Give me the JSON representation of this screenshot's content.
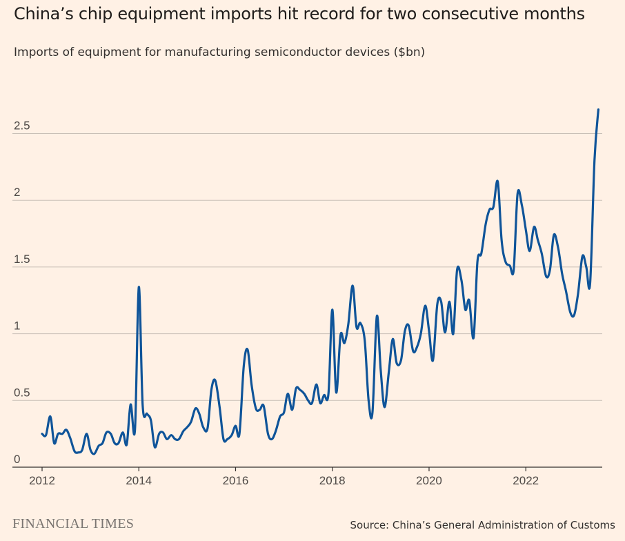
{
  "title": "China’s chip equipment imports hit record for two consecutive months",
  "subtitle": "Imports of equipment for manufacturing semiconductor devices ($bn)",
  "brand": "FINANCIAL TIMES",
  "source": "Source: China’s General Administration of Customs",
  "colors": {
    "background": "#fff1e5",
    "line": "#0f5499",
    "grid": "#c9c0b7",
    "axis": "#33302e"
  },
  "chart_data": {
    "type": "line",
    "title": "China’s chip equipment imports hit record for two consecutive months",
    "ylabel": "Imports of equipment for manufacturing semiconductor devices ($bn)",
    "xlabel": "",
    "xlim": [
      2012,
      2023.58
    ],
    "ylim": [
      0,
      2.5
    ],
    "xticks": [
      2012,
      2014,
      2016,
      2018,
      2020,
      2022
    ],
    "xtick_labels": [
      "2012",
      "2014",
      "2016",
      "2018",
      "2020",
      "2022"
    ],
    "yticks": [
      0,
      0.5,
      1,
      1.5,
      2,
      2.5
    ],
    "ytick_labels": [
      "0",
      "0.5",
      "1",
      "1.5",
      "2",
      "2.5"
    ],
    "grid": true,
    "legend": "none",
    "series": [
      {
        "name": "Imports ($bn)",
        "x": [
          2012.0,
          2012.08,
          2012.17,
          2012.25,
          2012.33,
          2012.42,
          2012.5,
          2012.58,
          2012.67,
          2012.75,
          2012.83,
          2012.92,
          2013.0,
          2013.08,
          2013.17,
          2013.25,
          2013.33,
          2013.42,
          2013.5,
          2013.58,
          2013.67,
          2013.75,
          2013.83,
          2013.92,
          2014.0,
          2014.08,
          2014.17,
          2014.25,
          2014.33,
          2014.42,
          2014.5,
          2014.58,
          2014.67,
          2014.75,
          2014.83,
          2014.92,
          2015.0,
          2015.08,
          2015.17,
          2015.25,
          2015.33,
          2015.42,
          2015.5,
          2015.58,
          2015.67,
          2015.75,
          2015.83,
          2015.92,
          2016.0,
          2016.08,
          2016.17,
          2016.25,
          2016.33,
          2016.42,
          2016.5,
          2016.58,
          2016.67,
          2016.75,
          2016.83,
          2016.92,
          2017.0,
          2017.08,
          2017.17,
          2017.25,
          2017.33,
          2017.42,
          2017.5,
          2017.58,
          2017.67,
          2017.75,
          2017.83,
          2017.92,
          2018.0,
          2018.08,
          2018.17,
          2018.25,
          2018.33,
          2018.42,
          2018.5,
          2018.58,
          2018.67,
          2018.75,
          2018.83,
          2018.92,
          2019.0,
          2019.08,
          2019.17,
          2019.25,
          2019.33,
          2019.42,
          2019.5,
          2019.58,
          2019.67,
          2019.75,
          2019.83,
          2019.92,
          2020.0,
          2020.08,
          2020.17,
          2020.25,
          2020.33,
          2020.42,
          2020.5,
          2020.58,
          2020.67,
          2020.75,
          2020.83,
          2020.92,
          2021.0,
          2021.08,
          2021.17,
          2021.25,
          2021.33,
          2021.42,
          2021.5,
          2021.58,
          2021.67,
          2021.75,
          2021.83,
          2021.92,
          2022.0,
          2022.08,
          2022.17,
          2022.25,
          2022.33,
          2022.42,
          2022.5,
          2022.58,
          2022.67,
          2022.75,
          2022.83,
          2022.92,
          2023.0,
          2023.08,
          2023.17,
          2023.25,
          2023.33,
          2023.42,
          2023.5
        ],
        "values": [
          0.25,
          0.24,
          0.38,
          0.18,
          0.25,
          0.25,
          0.28,
          0.22,
          0.12,
          0.11,
          0.13,
          0.25,
          0.13,
          0.1,
          0.16,
          0.18,
          0.26,
          0.25,
          0.18,
          0.18,
          0.26,
          0.17,
          0.47,
          0.28,
          1.35,
          0.46,
          0.4,
          0.35,
          0.15,
          0.25,
          0.26,
          0.21,
          0.24,
          0.21,
          0.21,
          0.27,
          0.3,
          0.34,
          0.44,
          0.4,
          0.3,
          0.29,
          0.58,
          0.65,
          0.45,
          0.21,
          0.21,
          0.24,
          0.31,
          0.25,
          0.76,
          0.88,
          0.62,
          0.44,
          0.43,
          0.46,
          0.25,
          0.21,
          0.27,
          0.38,
          0.41,
          0.55,
          0.43,
          0.59,
          0.58,
          0.55,
          0.5,
          0.48,
          0.62,
          0.48,
          0.54,
          0.55,
          1.18,
          0.56,
          0.99,
          0.93,
          1.07,
          1.36,
          1.05,
          1.08,
          0.95,
          0.5,
          0.41,
          1.13,
          0.73,
          0.45,
          0.72,
          0.96,
          0.78,
          0.8,
          1.02,
          1.06,
          0.87,
          0.9,
          1.0,
          1.21,
          1.02,
          0.8,
          1.22,
          1.24,
          1.01,
          1.24,
          1.0,
          1.48,
          1.4,
          1.18,
          1.25,
          0.97,
          1.54,
          1.6,
          1.82,
          1.93,
          1.95,
          2.14,
          1.7,
          1.54,
          1.51,
          1.48,
          2.05,
          1.96,
          1.78,
          1.62,
          1.8,
          1.7,
          1.6,
          1.43,
          1.48,
          1.74,
          1.64,
          1.45,
          1.32,
          1.16,
          1.14,
          1.3,
          1.58,
          1.5,
          1.38,
          2.3,
          2.68
        ]
      }
    ]
  }
}
